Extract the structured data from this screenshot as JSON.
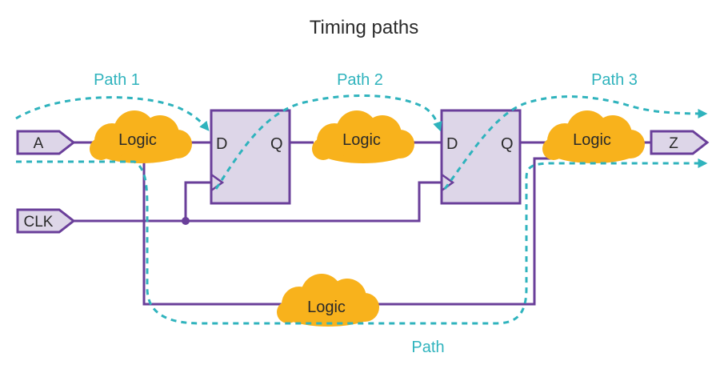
{
  "title": "Timing paths",
  "path_labels": {
    "path1": "Path 1",
    "path2": "Path 2",
    "path3": "Path 3",
    "path4": "Path"
  },
  "ports": {
    "a": "A",
    "clk": "CLK",
    "z": "Z"
  },
  "flip_flops": [
    {
      "d_label": "D",
      "q_label": "Q"
    },
    {
      "d_label": "D",
      "q_label": "Q"
    }
  ],
  "logic_blocks": [
    "Logic",
    "Logic",
    "Logic",
    "Logic"
  ],
  "colors": {
    "wire": "#6a3f9a",
    "timing_path": "#2fb3bd",
    "logic_cloud": "#f8b21c",
    "flip_flop_fill": "#ddd6e8"
  }
}
